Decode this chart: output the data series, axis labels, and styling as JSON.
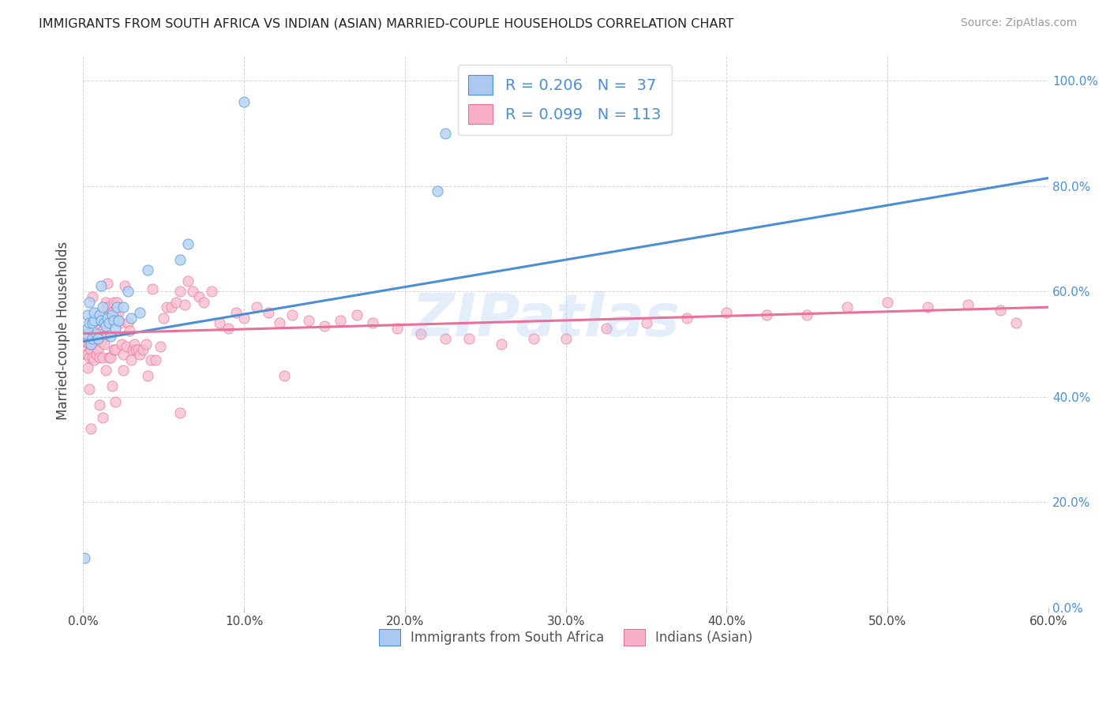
{
  "title": "IMMIGRANTS FROM SOUTH AFRICA VS INDIAN (ASIAN) MARRIED-COUPLE HOUSEHOLDS CORRELATION CHART",
  "source": "Source: ZipAtlas.com",
  "xlim": [
    0,
    0.6
  ],
  "ylim": [
    0.0,
    1.05
  ],
  "xtick_vals": [
    0.0,
    0.1,
    0.2,
    0.3,
    0.4,
    0.5,
    0.6
  ],
  "xtick_labels": [
    "0.0%",
    "10.0%",
    "20.0%",
    "30.0%",
    "40.0%",
    "50.0%",
    "60.0%"
  ],
  "ytick_vals": [
    0.0,
    0.2,
    0.4,
    0.6,
    0.8,
    1.0
  ],
  "ytick_labels": [
    "0.0%",
    "20.0%",
    "40.0%",
    "60.0%",
    "80.0%",
    "100.0%"
  ],
  "legend1_color": "#aac8f0",
  "legend2_color": "#f8b0c8",
  "trend1_color": "#4a8fd4",
  "trend2_color": "#e8709a",
  "scatter1_color": "#b8d4f4",
  "scatter2_color": "#f8c0d0",
  "watermark": "ZIPatlas",
  "legend_label1": "Immigrants from South Africa",
  "legend_label2": "Indians (Asian)",
  "ylabel": "Married-couple Households",
  "blue_x": [
    0.001,
    0.002,
    0.003,
    0.003,
    0.004,
    0.004,
    0.005,
    0.006,
    0.006,
    0.007,
    0.007,
    0.008,
    0.009,
    0.01,
    0.011,
    0.011,
    0.012,
    0.013,
    0.014,
    0.015,
    0.016,
    0.017,
    0.018,
    0.019,
    0.02,
    0.021,
    0.022,
    0.025,
    0.028,
    0.03,
    0.035,
    0.04,
    0.06,
    0.065,
    0.1,
    0.22,
    0.225
  ],
  "blue_y": [
    0.095,
    0.52,
    0.53,
    0.555,
    0.54,
    0.58,
    0.5,
    0.51,
    0.54,
    0.545,
    0.56,
    0.52,
    0.51,
    0.555,
    0.545,
    0.61,
    0.57,
    0.54,
    0.535,
    0.55,
    0.54,
    0.515,
    0.555,
    0.545,
    0.53,
    0.57,
    0.545,
    0.57,
    0.6,
    0.55,
    0.56,
    0.64,
    0.66,
    0.69,
    0.96,
    0.79,
    0.9
  ],
  "pink_x": [
    0.001,
    0.002,
    0.002,
    0.003,
    0.003,
    0.004,
    0.004,
    0.005,
    0.005,
    0.006,
    0.006,
    0.007,
    0.007,
    0.008,
    0.008,
    0.009,
    0.009,
    0.01,
    0.01,
    0.011,
    0.012,
    0.012,
    0.013,
    0.013,
    0.014,
    0.015,
    0.015,
    0.016,
    0.017,
    0.017,
    0.018,
    0.019,
    0.019,
    0.02,
    0.02,
    0.021,
    0.022,
    0.023,
    0.024,
    0.025,
    0.026,
    0.027,
    0.028,
    0.029,
    0.03,
    0.031,
    0.032,
    0.033,
    0.034,
    0.035,
    0.037,
    0.039,
    0.04,
    0.042,
    0.043,
    0.045,
    0.048,
    0.05,
    0.052,
    0.055,
    0.058,
    0.06,
    0.063,
    0.065,
    0.068,
    0.072,
    0.075,
    0.08,
    0.085,
    0.09,
    0.095,
    0.1,
    0.108,
    0.115,
    0.122,
    0.13,
    0.14,
    0.15,
    0.16,
    0.17,
    0.18,
    0.195,
    0.21,
    0.225,
    0.24,
    0.26,
    0.28,
    0.3,
    0.325,
    0.35,
    0.375,
    0.4,
    0.425,
    0.45,
    0.475,
    0.5,
    0.525,
    0.55,
    0.57,
    0.58,
    0.003,
    0.004,
    0.005,
    0.006,
    0.008,
    0.01,
    0.012,
    0.014,
    0.016,
    0.018,
    0.02,
    0.025,
    0.06,
    0.125
  ],
  "pink_y": [
    0.49,
    0.48,
    0.505,
    0.52,
    0.48,
    0.5,
    0.475,
    0.51,
    0.49,
    0.475,
    0.5,
    0.47,
    0.505,
    0.48,
    0.51,
    0.49,
    0.55,
    0.475,
    0.52,
    0.505,
    0.525,
    0.475,
    0.515,
    0.5,
    0.58,
    0.615,
    0.57,
    0.475,
    0.56,
    0.475,
    0.56,
    0.49,
    0.58,
    0.49,
    0.555,
    0.58,
    0.56,
    0.54,
    0.5,
    0.48,
    0.61,
    0.495,
    0.54,
    0.525,
    0.47,
    0.49,
    0.5,
    0.49,
    0.49,
    0.48,
    0.49,
    0.5,
    0.44,
    0.47,
    0.605,
    0.47,
    0.495,
    0.55,
    0.57,
    0.57,
    0.58,
    0.6,
    0.575,
    0.62,
    0.6,
    0.59,
    0.58,
    0.6,
    0.54,
    0.53,
    0.56,
    0.55,
    0.57,
    0.56,
    0.54,
    0.555,
    0.545,
    0.535,
    0.545,
    0.555,
    0.54,
    0.53,
    0.52,
    0.51,
    0.51,
    0.5,
    0.51,
    0.51,
    0.53,
    0.54,
    0.55,
    0.56,
    0.555,
    0.555,
    0.57,
    0.58,
    0.57,
    0.575,
    0.565,
    0.54,
    0.455,
    0.415,
    0.34,
    0.59,
    0.54,
    0.385,
    0.36,
    0.45,
    0.54,
    0.42,
    0.39,
    0.45,
    0.37,
    0.44
  ],
  "blue_trend_x0": 0.0,
  "blue_trend_y0": 0.505,
  "blue_trend_x1": 0.6,
  "blue_trend_y1": 0.815,
  "pink_trend_x0": 0.0,
  "pink_trend_y0": 0.52,
  "pink_trend_x1": 0.6,
  "pink_trend_y1": 0.57
}
